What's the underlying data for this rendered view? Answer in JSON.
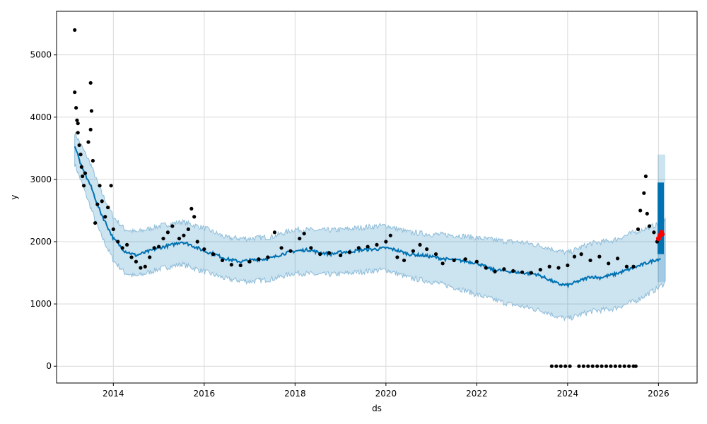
{
  "chart_data": {
    "type": "scatter",
    "xlabel": "ds",
    "ylabel": "y",
    "xlim": [
      2012.75,
      2026.85
    ],
    "ylim": [
      -270,
      5700
    ],
    "x_ticks": [
      {
        "value": 2014,
        "label": "2014"
      },
      {
        "value": 2016,
        "label": "2016"
      },
      {
        "value": 2018,
        "label": "2018"
      },
      {
        "value": 2020,
        "label": "2020"
      },
      {
        "value": 2022,
        "label": "2022"
      },
      {
        "value": 2024,
        "label": "2024"
      },
      {
        "value": 2026,
        "label": "2026"
      }
    ],
    "y_ticks": [
      {
        "value": 0,
        "label": "0"
      },
      {
        "value": 1000,
        "label": "1000"
      },
      {
        "value": 2000,
        "label": "2000"
      },
      {
        "value": 3000,
        "label": "3000"
      },
      {
        "value": 4000,
        "label": "4000"
      },
      {
        "value": 5000,
        "label": "5000"
      }
    ],
    "grid": true,
    "colors": {
      "observed": "#000000",
      "forecast": "#0072B2",
      "interval_fill": "#0072B2",
      "interval_edge": "#8FBDD9",
      "highlight": "#FF0000",
      "grid": "#d9d9d9"
    },
    "forecast": [
      [
        2013.15,
        3550
      ],
      [
        2013.3,
        3200
      ],
      [
        2013.5,
        2900
      ],
      [
        2013.7,
        2500
      ],
      [
        2014.0,
        2050
      ],
      [
        2014.25,
        1850
      ],
      [
        2014.5,
        1780
      ],
      [
        2014.8,
        1850
      ],
      [
        2015.0,
        1900
      ],
      [
        2015.3,
        1950
      ],
      [
        2015.5,
        2000
      ],
      [
        2015.7,
        1950
      ],
      [
        2016.0,
        1850
      ],
      [
        2016.3,
        1780
      ],
      [
        2016.5,
        1720
      ],
      [
        2016.8,
        1680
      ],
      [
        2017.0,
        1700
      ],
      [
        2017.3,
        1720
      ],
      [
        2017.5,
        1740
      ],
      [
        2017.7,
        1800
      ],
      [
        2018.0,
        1850
      ],
      [
        2018.3,
        1870
      ],
      [
        2018.5,
        1830
      ],
      [
        2018.8,
        1800
      ],
      [
        2019.0,
        1830
      ],
      [
        2019.3,
        1850
      ],
      [
        2019.5,
        1870
      ],
      [
        2019.8,
        1880
      ],
      [
        2020.0,
        1900
      ],
      [
        2020.2,
        1870
      ],
      [
        2020.5,
        1800
      ],
      [
        2020.8,
        1780
      ],
      [
        2021.0,
        1760
      ],
      [
        2021.3,
        1720
      ],
      [
        2021.6,
        1700
      ],
      [
        2022.0,
        1660
      ],
      [
        2022.3,
        1560
      ],
      [
        2022.6,
        1530
      ],
      [
        2023.0,
        1500
      ],
      [
        2023.3,
        1480
      ],
      [
        2023.5,
        1420
      ],
      [
        2023.8,
        1320
      ],
      [
        2024.0,
        1300
      ],
      [
        2024.3,
        1380
      ],
      [
        2024.5,
        1440
      ],
      [
        2024.7,
        1420
      ],
      [
        2025.0,
        1470
      ],
      [
        2025.3,
        1540
      ],
      [
        2025.6,
        1620
      ],
      [
        2025.9,
        1700
      ],
      [
        2026.05,
        1730
      ]
    ],
    "interval": [
      [
        2013.15,
        3250,
        3750
      ],
      [
        2013.5,
        2550,
        3250
      ],
      [
        2013.7,
        2150,
        2850
      ],
      [
        2014.0,
        1700,
        2400
      ],
      [
        2014.25,
        1500,
        2200
      ],
      [
        2014.5,
        1440,
        2150
      ],
      [
        2015.0,
        1560,
        2250
      ],
      [
        2015.5,
        1640,
        2320
      ],
      [
        2016.0,
        1520,
        2220
      ],
      [
        2016.5,
        1400,
        2060
      ],
      [
        2017.0,
        1360,
        2050
      ],
      [
        2017.5,
        1400,
        2080
      ],
      [
        2018.0,
        1500,
        2200
      ],
      [
        2018.5,
        1470,
        2180
      ],
      [
        2019.0,
        1480,
        2190
      ],
      [
        2019.5,
        1520,
        2230
      ],
      [
        2020.0,
        1550,
        2260
      ],
      [
        2020.5,
        1420,
        2150
      ],
      [
        2021.0,
        1360,
        2120
      ],
      [
        2021.6,
        1250,
        2100
      ],
      [
        2022.0,
        1150,
        2060
      ],
      [
        2022.6,
        1020,
        2010
      ],
      [
        2023.0,
        960,
        1990
      ],
      [
        2023.5,
        880,
        1920
      ],
      [
        2023.8,
        790,
        1850
      ],
      [
        2024.0,
        760,
        1820
      ],
      [
        2024.5,
        880,
        1970
      ],
      [
        2025.0,
        920,
        2020
      ],
      [
        2025.5,
        1050,
        2160
      ],
      [
        2026.0,
        1260,
        2280
      ],
      [
        2026.15,
        1350,
        2350
      ]
    ],
    "future_band": {
      "x_start": 2025.98,
      "x_end": 2026.15,
      "lower": 1800,
      "upper": 2950,
      "interval_lower": 1350,
      "interval_upper": 3400
    },
    "observed": [
      [
        2013.15,
        5400
      ],
      [
        2013.15,
        4400
      ],
      [
        2013.18,
        4150
      ],
      [
        2013.2,
        3950
      ],
      [
        2013.22,
        3900
      ],
      [
        2013.22,
        3750
      ],
      [
        2013.25,
        3550
      ],
      [
        2013.28,
        3400
      ],
      [
        2013.3,
        3200
      ],
      [
        2013.32,
        3050
      ],
      [
        2013.35,
        2900
      ],
      [
        2013.38,
        3100
      ],
      [
        2013.45,
        3600
      ],
      [
        2013.5,
        3800
      ],
      [
        2013.5,
        4550
      ],
      [
        2013.52,
        4100
      ],
      [
        2013.55,
        3300
      ],
      [
        2013.6,
        2300
      ],
      [
        2013.65,
        2600
      ],
      [
        2013.7,
        2900
      ],
      [
        2013.75,
        2650
      ],
      [
        2013.82,
        2400
      ],
      [
        2013.88,
        2550
      ],
      [
        2013.95,
        2900
      ],
      [
        2014.0,
        2200
      ],
      [
        2014.1,
        2000
      ],
      [
        2014.2,
        1900
      ],
      [
        2014.3,
        1950
      ],
      [
        2014.4,
        1750
      ],
      [
        2014.5,
        1680
      ],
      [
        2014.6,
        1580
      ],
      [
        2014.7,
        1600
      ],
      [
        2014.8,
        1750
      ],
      [
        2014.9,
        1900
      ],
      [
        2015.0,
        1920
      ],
      [
        2015.1,
        2050
      ],
      [
        2015.2,
        2150
      ],
      [
        2015.3,
        2250
      ],
      [
        2015.45,
        2050
      ],
      [
        2015.55,
        2100
      ],
      [
        2015.65,
        2200
      ],
      [
        2015.72,
        2530
      ],
      [
        2015.78,
        2400
      ],
      [
        2015.85,
        2000
      ],
      [
        2016.0,
        1880
      ],
      [
        2016.2,
        1800
      ],
      [
        2016.4,
        1700
      ],
      [
        2016.6,
        1630
      ],
      [
        2016.8,
        1620
      ],
      [
        2017.0,
        1680
      ],
      [
        2017.2,
        1720
      ],
      [
        2017.4,
        1750
      ],
      [
        2017.55,
        2150
      ],
      [
        2017.7,
        1900
      ],
      [
        2017.9,
        1850
      ],
      [
        2018.1,
        2050
      ],
      [
        2018.2,
        2130
      ],
      [
        2018.35,
        1900
      ],
      [
        2018.55,
        1800
      ],
      [
        2018.75,
        1820
      ],
      [
        2019.0,
        1780
      ],
      [
        2019.2,
        1830
      ],
      [
        2019.4,
        1900
      ],
      [
        2019.6,
        1920
      ],
      [
        2019.8,
        1950
      ],
      [
        2020.0,
        2000
      ],
      [
        2020.1,
        2100
      ],
      [
        2020.25,
        1750
      ],
      [
        2020.4,
        1700
      ],
      [
        2020.6,
        1850
      ],
      [
        2020.75,
        1950
      ],
      [
        2020.9,
        1880
      ],
      [
        2021.1,
        1800
      ],
      [
        2021.25,
        1650
      ],
      [
        2021.5,
        1700
      ],
      [
        2021.75,
        1720
      ],
      [
        2022.0,
        1680
      ],
      [
        2022.2,
        1580
      ],
      [
        2022.4,
        1520
      ],
      [
        2022.6,
        1560
      ],
      [
        2022.8,
        1530
      ],
      [
        2023.0,
        1510
      ],
      [
        2023.2,
        1500
      ],
      [
        2023.4,
        1550
      ],
      [
        2023.6,
        1600
      ],
      [
        2023.8,
        1580
      ],
      [
        2024.0,
        1620
      ],
      [
        2024.15,
        1760
      ],
      [
        2024.3,
        1800
      ],
      [
        2024.5,
        1700
      ],
      [
        2024.7,
        1760
      ],
      [
        2024.9,
        1650
      ],
      [
        2025.1,
        1730
      ],
      [
        2025.3,
        1600
      ],
      [
        2025.45,
        1600
      ],
      [
        2025.55,
        2200
      ],
      [
        2025.6,
        2500
      ],
      [
        2025.68,
        2780
      ],
      [
        2025.72,
        3050
      ],
      [
        2025.75,
        2450
      ],
      [
        2025.8,
        2250
      ],
      [
        2025.9,
        2150
      ],
      [
        2025.97,
        2000
      ],
      [
        2023.65,
        0
      ],
      [
        2023.75,
        0
      ],
      [
        2023.85,
        0
      ],
      [
        2023.95,
        0
      ],
      [
        2024.05,
        0
      ],
      [
        2024.25,
        0
      ],
      [
        2024.35,
        0
      ],
      [
        2024.45,
        0
      ],
      [
        2024.55,
        0
      ],
      [
        2024.65,
        0
      ],
      [
        2024.75,
        0
      ],
      [
        2024.85,
        0
      ],
      [
        2024.95,
        0
      ],
      [
        2025.05,
        0
      ],
      [
        2025.15,
        0
      ],
      [
        2025.25,
        0
      ],
      [
        2025.35,
        0
      ],
      [
        2025.45,
        0
      ],
      [
        2025.5,
        0
      ]
    ],
    "highlight_points": [
      [
        2026.0,
        2050
      ],
      [
        2026.03,
        2100
      ],
      [
        2026.06,
        2150
      ],
      [
        2026.08,
        2120
      ]
    ]
  }
}
